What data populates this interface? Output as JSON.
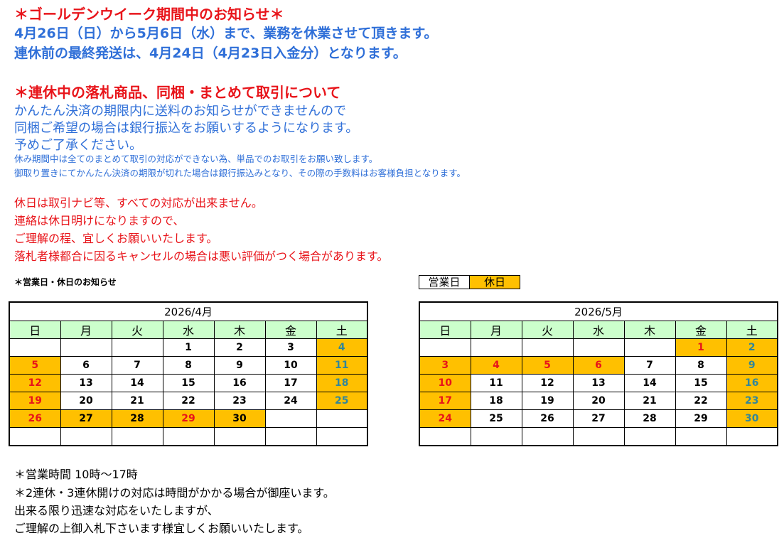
{
  "notice": {
    "title": "＊ゴールデンウイーク期間中のお知らせ＊",
    "line1": "4月26日（日）から5月6日（水）まで、業務を休業させて頂きます。",
    "line2": "連休前の最終発送は、4月24日（4月23日入金分）となります。"
  },
  "bundle": {
    "title": "＊連休中の落札商品、同梱・まとめて取引について",
    "line1": "かんたん決済の期限内に送料のお知らせができませんので",
    "line2": "同梱ご希望の場合は銀行振込をお願いするようになります。",
    "line3": "予めご了承ください。",
    "small1": "休み期間中は全てのまとめて取引の対応ができない為、単品でのお取引をお願い致します。",
    "small2": "御取り置きにてかんたん決済の期限が切れた場合は銀行振込みとなり、その際の手数料はお客様負担となります。"
  },
  "warning": {
    "line1": "休日は取引ナビ等、すべての対応が出来ません。",
    "line2": "連絡は休日明けになりますので、",
    "line3": "ご理解の程、宜しくお願いいたします。",
    "line4": "落札者様都合に因るキャンセルの場合は悪い評価がつく場合があります。"
  },
  "calendar_caption": "＊営業日・休日のお知らせ",
  "legend": {
    "business_day": "営業日",
    "holiday": "休日",
    "holiday_color": "#ffc000"
  },
  "weekdays": [
    "日",
    "月",
    "火",
    "水",
    "木",
    "金",
    "土"
  ],
  "calendars": [
    {
      "title": "2026/4月",
      "rows": [
        [
          [
            "",
            ""
          ],
          [
            "",
            ""
          ],
          [
            "",
            ""
          ],
          [
            "1",
            ""
          ],
          [
            "2",
            ""
          ],
          [
            "3",
            ""
          ],
          [
            "4",
            "sat"
          ]
        ],
        [
          [
            "5",
            "sun"
          ],
          [
            "6",
            ""
          ],
          [
            "7",
            ""
          ],
          [
            "8",
            ""
          ],
          [
            "9",
            ""
          ],
          [
            "10",
            ""
          ],
          [
            "11",
            "sat"
          ]
        ],
        [
          [
            "12",
            "sun"
          ],
          [
            "13",
            ""
          ],
          [
            "14",
            ""
          ],
          [
            "15",
            ""
          ],
          [
            "16",
            ""
          ],
          [
            "17",
            ""
          ],
          [
            "18",
            "sat"
          ]
        ],
        [
          [
            "19",
            "sun"
          ],
          [
            "20",
            ""
          ],
          [
            "21",
            ""
          ],
          [
            "22",
            ""
          ],
          [
            "23",
            ""
          ],
          [
            "24",
            ""
          ],
          [
            "25",
            "sat"
          ]
        ],
        [
          [
            "26",
            "sun"
          ],
          [
            "27",
            "hol"
          ],
          [
            "28",
            "hol"
          ],
          [
            "29",
            "sun"
          ],
          [
            "30",
            "hol"
          ],
          [
            "",
            ""
          ],
          [
            "",
            ""
          ]
        ],
        [
          [
            "",
            ""
          ],
          [
            "",
            ""
          ],
          [
            "",
            ""
          ],
          [
            "",
            ""
          ],
          [
            "",
            ""
          ],
          [
            "",
            ""
          ],
          [
            "",
            ""
          ]
        ]
      ]
    },
    {
      "title": "2026/5月",
      "rows": [
        [
          [
            "",
            ""
          ],
          [
            "",
            ""
          ],
          [
            "",
            ""
          ],
          [
            "",
            ""
          ],
          [
            "",
            ""
          ],
          [
            "1",
            "sun"
          ],
          [
            "2",
            "sat"
          ]
        ],
        [
          [
            "3",
            "sun"
          ],
          [
            "4",
            "sun"
          ],
          [
            "5",
            "sun"
          ],
          [
            "6",
            "sun"
          ],
          [
            "7",
            ""
          ],
          [
            "8",
            ""
          ],
          [
            "9",
            "sat"
          ]
        ],
        [
          [
            "10",
            "sun"
          ],
          [
            "11",
            ""
          ],
          [
            "12",
            ""
          ],
          [
            "13",
            ""
          ],
          [
            "14",
            ""
          ],
          [
            "15",
            ""
          ],
          [
            "16",
            "sat"
          ]
        ],
        [
          [
            "17",
            "sun"
          ],
          [
            "18",
            ""
          ],
          [
            "19",
            ""
          ],
          [
            "20",
            ""
          ],
          [
            "21",
            ""
          ],
          [
            "22",
            ""
          ],
          [
            "23",
            "sat"
          ]
        ],
        [
          [
            "24",
            "sun"
          ],
          [
            "25",
            ""
          ],
          [
            "26",
            ""
          ],
          [
            "27",
            ""
          ],
          [
            "28",
            ""
          ],
          [
            "29",
            ""
          ],
          [
            "30",
            "sat"
          ]
        ],
        [
          [
            "",
            ""
          ],
          [
            "",
            ""
          ],
          [
            "",
            ""
          ],
          [
            "",
            ""
          ],
          [
            "",
            ""
          ],
          [
            "",
            ""
          ],
          [
            "",
            ""
          ]
        ]
      ]
    }
  ],
  "footer": {
    "line1": "＊営業時間 10時～17時",
    "line2": "＊2連休・3連休開けの対応は時間がかかる場合が御座います。",
    "line3": "出来る限り迅速な対応をいたしますが、",
    "line4": "ご理解の上御入札下さいます様宜しくお願いいたします。"
  }
}
